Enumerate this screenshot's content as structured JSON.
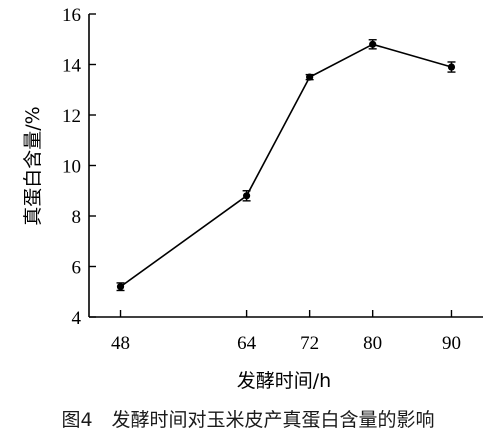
{
  "chart_data": {
    "type": "line",
    "x": [
      48,
      64,
      72,
      80,
      90
    ],
    "series": [
      {
        "values": [
          5.2,
          8.8,
          13.5,
          14.8,
          13.9
        ],
        "error": [
          0.15,
          0.2,
          0.1,
          0.18,
          0.2
        ]
      }
    ],
    "x_ticks": [
      "48",
      "64",
      "72",
      "80",
      "90"
    ],
    "y_ticks": [
      "4",
      "6",
      "8",
      "10",
      "12",
      "14",
      "16"
    ],
    "xlim": [
      44,
      94
    ],
    "ylim": [
      4,
      16
    ],
    "xlabel": "发酵时间/h",
    "ylabel": "真蛋白含量/%",
    "grid": false,
    "legend": "none"
  },
  "caption": "图4　发酵时间对玉米皮产真蛋白含量的影响",
  "colors": {
    "line": "#000000",
    "marker": "#000000",
    "caption": "#1a1a1a"
  }
}
